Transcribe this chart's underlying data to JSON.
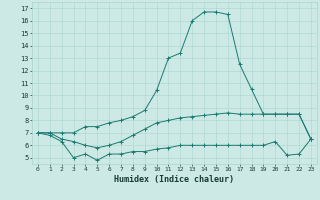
{
  "xlabel": "Humidex (Indice chaleur)",
  "background_color": "#cce9e5",
  "grid_color": "#aad4cf",
  "line_color": "#1a7a70",
  "x_ticks": [
    0,
    1,
    2,
    3,
    4,
    5,
    6,
    7,
    8,
    9,
    10,
    11,
    12,
    13,
    14,
    15,
    16,
    17,
    18,
    19,
    20,
    21,
    22,
    23
  ],
  "y_ticks": [
    5,
    6,
    7,
    8,
    9,
    10,
    11,
    12,
    13,
    14,
    15,
    16,
    17
  ],
  "ylim": [
    4.5,
    17.5
  ],
  "xlim": [
    -0.5,
    23.5
  ],
  "line1_x": [
    0,
    1,
    2,
    3,
    4,
    5,
    6,
    7,
    8,
    9,
    10,
    11,
    12,
    13,
    14,
    15,
    16,
    17,
    18,
    19,
    20,
    21,
    22,
    23
  ],
  "line1_y": [
    7.0,
    6.8,
    6.3,
    5.0,
    5.3,
    4.8,
    5.3,
    5.3,
    5.5,
    5.5,
    5.7,
    5.8,
    6.0,
    6.0,
    6.0,
    6.0,
    6.0,
    6.0,
    6.0,
    6.0,
    6.3,
    5.2,
    5.3,
    6.5
  ],
  "line2_x": [
    0,
    1,
    2,
    3,
    4,
    5,
    6,
    7,
    8,
    9,
    10,
    11,
    12,
    13,
    14,
    15,
    16,
    17,
    18,
    19,
    20,
    21,
    22,
    23
  ],
  "line2_y": [
    7.0,
    7.0,
    6.5,
    6.3,
    6.0,
    5.8,
    6.0,
    6.3,
    6.8,
    7.3,
    7.8,
    8.0,
    8.2,
    8.3,
    8.4,
    8.5,
    8.6,
    8.5,
    8.5,
    8.5,
    8.5,
    8.5,
    8.5,
    6.5
  ],
  "line3_x": [
    0,
    1,
    2,
    3,
    4,
    5,
    6,
    7,
    8,
    9,
    10,
    11,
    12,
    13,
    14,
    15,
    16,
    17,
    18,
    19,
    20,
    21,
    22,
    23
  ],
  "line3_y": [
    7.0,
    7.0,
    7.0,
    7.0,
    7.5,
    7.5,
    7.8,
    8.0,
    8.3,
    8.8,
    10.4,
    13.0,
    13.4,
    16.0,
    16.7,
    16.7,
    16.5,
    12.5,
    10.5,
    8.5,
    8.5,
    8.5,
    8.5,
    6.5
  ]
}
